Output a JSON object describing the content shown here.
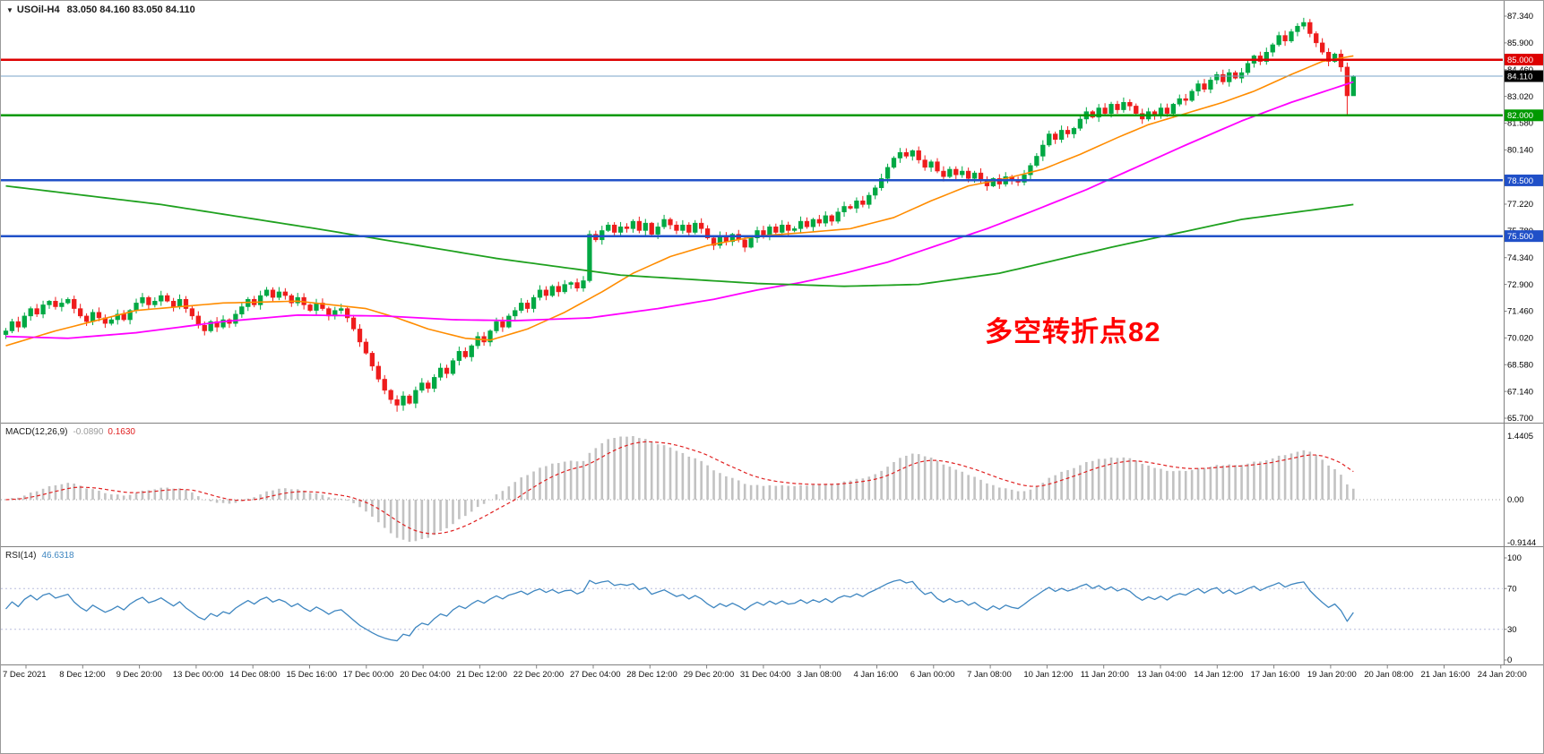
{
  "header": {
    "dropdown_icon": "▼",
    "symbol": "USOil-H4",
    "ohlc": "83.050 84.160 83.050 84.110"
  },
  "annotation": {
    "text": "多空转折点82",
    "color": "#ff0000"
  },
  "indicators": {
    "macd": {
      "label": "MACD(12,26,9)",
      "main_value": "-0.0890",
      "signal_value": "0.1630",
      "axis": [
        "1.4405",
        "0.00",
        "-0.9144"
      ],
      "histogram_color": "#c2c2c2",
      "signal_color": "#e02020"
    },
    "rsi": {
      "label": "RSI(14)",
      "value": "46.6318",
      "axis": [
        {
          "label": "100",
          "value": 100
        },
        {
          "label": "70",
          "value": 70
        },
        {
          "label": "30",
          "value": 30
        },
        {
          "label": "0",
          "value": 0
        }
      ],
      "levels": [
        70,
        30
      ],
      "line_color": "#3e86c0",
      "level_color": "#b8bedd"
    }
  },
  "chart_data": {
    "type": "candlestick",
    "symbol": "USOil",
    "timeframe": "H4",
    "current_bar": {
      "open": "83.050",
      "high": "84.160",
      "low": "83.050",
      "close": "84.110"
    },
    "colors": {
      "up": "#00a843",
      "down": "#ee1c1c",
      "axis": "#808080",
      "tick_text": "#000000"
    },
    "price_axis": {
      "min": 65.7,
      "max": 87.34,
      "ticks": [
        {
          "label": "87.340",
          "value": 87.34
        },
        {
          "label": "85.900",
          "value": 85.9
        },
        {
          "label": "84.460",
          "value": 84.46
        },
        {
          "label": "83.020",
          "value": 83.02
        },
        {
          "label": "81.580",
          "value": 81.58
        },
        {
          "label": "80.140",
          "value": 80.14
        },
        {
          "label": "77.220",
          "value": 77.22
        },
        {
          "label": "75.780",
          "value": 75.78
        },
        {
          "label": "74.340",
          "value": 74.34
        },
        {
          "label": "72.900",
          "value": 72.9
        },
        {
          "label": "71.460",
          "value": 71.46
        },
        {
          "label": "70.020",
          "value": 70.02
        },
        {
          "label": "68.580",
          "value": 68.58
        },
        {
          "label": "67.140",
          "value": 67.14
        },
        {
          "label": "65.700",
          "value": 65.7
        }
      ]
    },
    "price_lines": [
      {
        "price": 85.0,
        "label": "85.000",
        "color": "#dd0000",
        "width": 2.4,
        "label_bg": "#dd0000"
      },
      {
        "price": 84.11,
        "label": "84.110",
        "color": "#7aa5c8",
        "width": 1,
        "label_bg": "#000000"
      },
      {
        "price": 82.0,
        "label": "82.000",
        "color": "#009900",
        "width": 2.4,
        "label_bg": "#009900"
      },
      {
        "price": 78.5,
        "label": "78.500",
        "color": "#2050c8",
        "width": 2.4,
        "label_bg": "#2050c8"
      },
      {
        "price": 75.5,
        "label": "75.500",
        "color": "#2050c8",
        "width": 2.4,
        "label_bg": "#2050c8"
      }
    ],
    "open_first": 70.2,
    "closes": [
      70.4,
      70.9,
      70.6,
      71.2,
      71.6,
      71.3,
      71.8,
      72.0,
      71.7,
      71.9,
      72.1,
      71.6,
      71.2,
      70.9,
      71.4,
      71.1,
      70.8,
      71.0,
      71.3,
      71.0,
      71.5,
      71.9,
      72.2,
      71.8,
      72.0,
      72.3,
      72.0,
      71.7,
      72.1,
      71.6,
      71.2,
      70.7,
      70.4,
      70.9,
      70.6,
      71.0,
      70.8,
      71.3,
      71.7,
      72.1,
      71.8,
      72.3,
      72.6,
      72.2,
      72.5,
      72.3,
      71.9,
      72.2,
      71.8,
      71.5,
      71.9,
      71.6,
      71.2,
      71.5,
      71.6,
      71.1,
      70.5,
      69.8,
      69.2,
      68.5,
      67.8,
      67.2,
      66.7,
      66.4,
      66.9,
      66.5,
      67.2,
      67.6,
      67.3,
      67.9,
      68.4,
      68.1,
      68.8,
      69.3,
      69.0,
      69.6,
      70.1,
      69.8,
      70.4,
      70.9,
      70.6,
      71.2,
      71.5,
      71.9,
      71.6,
      72.2,
      72.6,
      72.3,
      72.8,
      72.5,
      72.9,
      73.0,
      72.7,
      73.1,
      75.6,
      75.3,
      75.8,
      76.1,
      75.7,
      76.0,
      75.9,
      76.3,
      75.8,
      76.2,
      75.6,
      76.0,
      76.4,
      76.1,
      75.8,
      76.1,
      75.7,
      76.2,
      75.9,
      75.4,
      75.0,
      75.5,
      75.2,
      75.6,
      75.3,
      74.9,
      75.4,
      75.8,
      75.5,
      76.0,
      75.7,
      76.1,
      75.8,
      75.9,
      76.3,
      76.0,
      76.4,
      76.2,
      76.6,
      76.3,
      76.8,
      77.1,
      77.0,
      77.4,
      77.2,
      77.7,
      78.1,
      78.6,
      79.2,
      79.7,
      80.0,
      79.8,
      80.1,
      79.6,
      79.2,
      79.5,
      79.0,
      78.7,
      79.1,
      78.8,
      79.0,
      78.6,
      78.9,
      78.5,
      78.2,
      78.6,
      78.3,
      78.7,
      78.5,
      78.4,
      78.8,
      79.3,
      79.8,
      80.4,
      81.0,
      80.7,
      81.2,
      81.0,
      81.3,
      81.8,
      82.2,
      81.9,
      82.4,
      82.1,
      82.6,
      82.3,
      82.7,
      82.5,
      82.1,
      81.8,
      82.2,
      82.0,
      82.4,
      82.1,
      82.6,
      82.9,
      82.8,
      83.3,
      83.7,
      83.4,
      83.9,
      84.2,
      83.8,
      84.3,
      84.0,
      84.3,
      84.8,
      85.2,
      84.9,
      85.4,
      85.8,
      86.3,
      86.0,
      86.5,
      86.8,
      87.0,
      86.4,
      85.9,
      85.4,
      84.9,
      85.3,
      84.6,
      83.05,
      84.11
    ],
    "overrides": {
      "63": {
        "low": 66.05
      },
      "64": {
        "low": 66.1
      },
      "94": {
        "high": 75.8,
        "low": 73.0
      },
      "209": {
        "high": 87.25
      },
      "216": {
        "low": 82.05
      },
      "217": {
        "high": 84.16,
        "low": 83.05
      }
    },
    "moving_averages": [
      {
        "name": "ma-fast-orange",
        "color": "#ff8c00",
        "width": 1.6,
        "points": [
          [
            0,
            69.6
          ],
          [
            8,
            70.4
          ],
          [
            21,
            71.5
          ],
          [
            35,
            71.9
          ],
          [
            47,
            72.0
          ],
          [
            58,
            71.6
          ],
          [
            63,
            71.1
          ],
          [
            68,
            70.5
          ],
          [
            74,
            70.0
          ],
          [
            78,
            69.9
          ],
          [
            84,
            70.5
          ],
          [
            90,
            71.4
          ],
          [
            96,
            72.5
          ],
          [
            101,
            73.5
          ],
          [
            107,
            74.4
          ],
          [
            113,
            75.0
          ],
          [
            121,
            75.5
          ],
          [
            129,
            75.7
          ],
          [
            136,
            75.9
          ],
          [
            143,
            76.5
          ],
          [
            149,
            77.4
          ],
          [
            155,
            78.2
          ],
          [
            161,
            78.6
          ],
          [
            167,
            79.1
          ],
          [
            173,
            79.9
          ],
          [
            179,
            80.8
          ],
          [
            184,
            81.5
          ],
          [
            190,
            82.1
          ],
          [
            196,
            82.7
          ],
          [
            201,
            83.3
          ],
          [
            207,
            84.2
          ],
          [
            212,
            84.9
          ],
          [
            217,
            85.2
          ]
        ]
      },
      {
        "name": "ma-mid-magenta",
        "color": "#ff00ff",
        "width": 1.8,
        "points": [
          [
            0,
            70.1
          ],
          [
            10,
            70.0
          ],
          [
            21,
            70.3
          ],
          [
            35,
            70.9
          ],
          [
            47,
            71.25
          ],
          [
            61,
            71.2
          ],
          [
            72,
            71.0
          ],
          [
            82,
            70.95
          ],
          [
            94,
            71.1
          ],
          [
            105,
            71.6
          ],
          [
            114,
            72.1
          ],
          [
            121,
            72.6
          ],
          [
            128,
            73.0
          ],
          [
            135,
            73.5
          ],
          [
            142,
            74.1
          ],
          [
            150,
            75.0
          ],
          [
            158,
            75.9
          ],
          [
            165,
            76.8
          ],
          [
            174,
            78.0
          ],
          [
            182,
            79.2
          ],
          [
            190,
            80.4
          ],
          [
            199,
            81.7
          ],
          [
            207,
            82.7
          ],
          [
            217,
            83.8
          ]
        ]
      },
      {
        "name": "ma-slow-green",
        "color": "#1fa11f",
        "width": 1.8,
        "points": [
          [
            0,
            78.2
          ],
          [
            25,
            77.2
          ],
          [
            50,
            75.9
          ],
          [
            79,
            74.3
          ],
          [
            99,
            73.4
          ],
          [
            121,
            72.95
          ],
          [
            135,
            72.8
          ],
          [
            147,
            72.9
          ],
          [
            160,
            73.5
          ],
          [
            178,
            74.9
          ],
          [
            199,
            76.4
          ],
          [
            217,
            77.2
          ]
        ]
      }
    ],
    "time_axis": [
      "7 Dec 2021",
      "8 Dec 12:00",
      "9 Dec 20:00",
      "13 Dec 00:00",
      "14 Dec 08:00",
      "15 Dec 16:00",
      "17 Dec 00:00",
      "20 Dec 04:00",
      "21 Dec 12:00",
      "22 Dec 20:00",
      "27 Dec 04:00",
      "28 Dec 12:00",
      "29 Dec 20:00",
      "31 Dec 04:00",
      "3 Jan 08:00",
      "4 Jan 16:00",
      "6 Jan 00:00",
      "7 Jan 08:00",
      "10 Jan 12:00",
      "11 Jan 20:00",
      "13 Jan 04:00",
      "14 Jan 12:00",
      "17 Jan 16:00",
      "19 Jan 20:00",
      "20 Jan 08:00",
      "21 Jan 16:00",
      "24 Jan 20:00"
    ]
  }
}
